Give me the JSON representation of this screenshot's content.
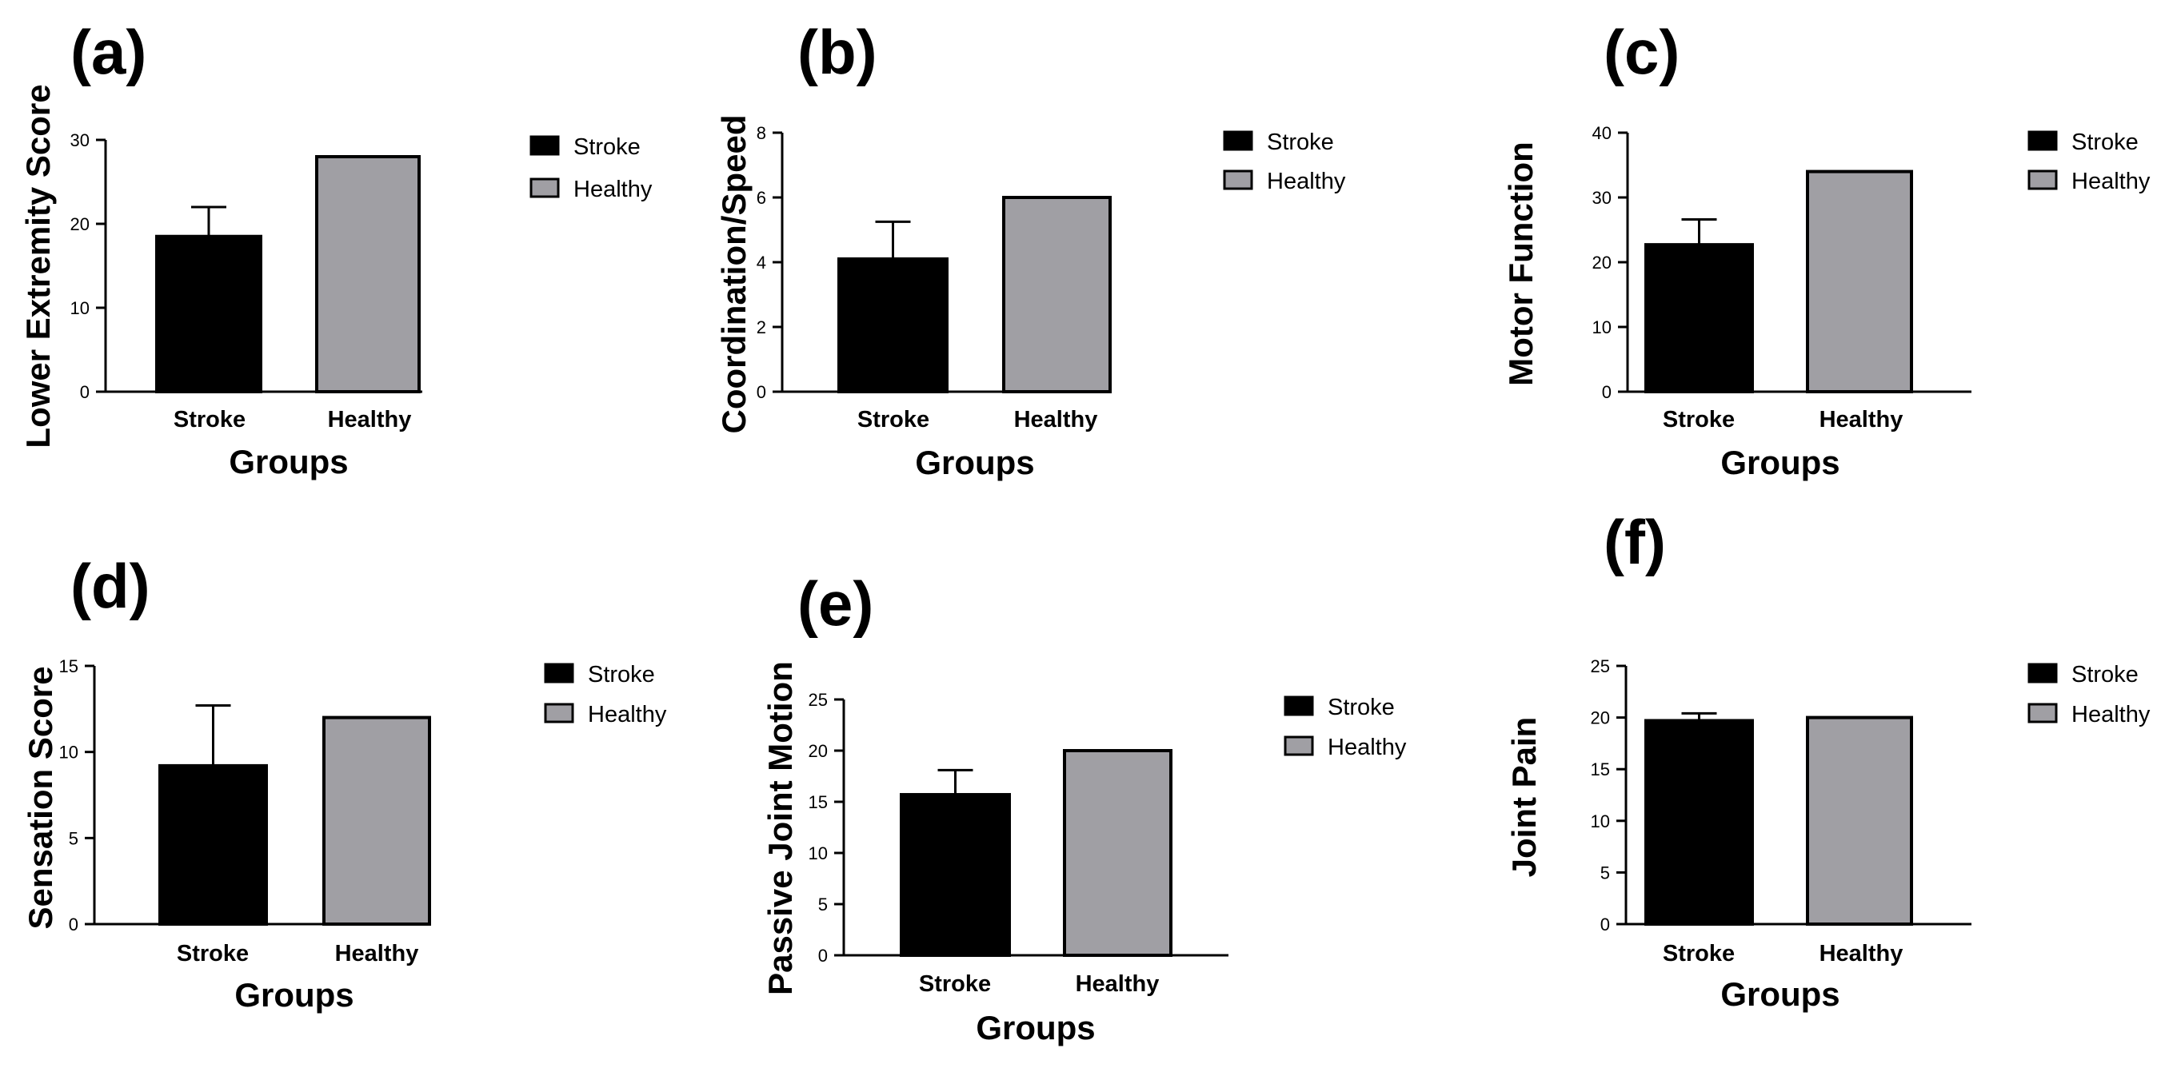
{
  "colors": {
    "stroke": "#000000",
    "healthy": "#a09fa4",
    "axis": "#000000"
  },
  "chart_data": [
    {
      "type": "bar",
      "panel": "(a)",
      "categories": [
        "Stroke",
        "Healthy"
      ],
      "values": [
        18.5,
        28
      ],
      "error": [
        3.5,
        0
      ],
      "ylim": [
        0,
        30
      ],
      "yticks": [
        0,
        10,
        20,
        30
      ],
      "ylabel": "Lower Extremity Score",
      "xlabel": "Groups",
      "legend": [
        "Stroke",
        "Healthy"
      ]
    },
    {
      "type": "bar",
      "panel": "(b)",
      "categories": [
        "Stroke",
        "Healthy"
      ],
      "values": [
        4.1,
        6
      ],
      "error": [
        1.15,
        0
      ],
      "ylim": [
        0,
        8
      ],
      "yticks": [
        0,
        2,
        4,
        6,
        8
      ],
      "ylabel": "Coordination/Speed",
      "xlabel": "Groups",
      "legend": [
        "Stroke",
        "Healthy"
      ]
    },
    {
      "type": "bar",
      "panel": "(c)",
      "categories": [
        "Stroke",
        "Healthy"
      ],
      "values": [
        22.7,
        34
      ],
      "error": [
        3.9,
        0
      ],
      "ylim": [
        0,
        40
      ],
      "yticks": [
        0,
        10,
        20,
        30,
        40
      ],
      "ylabel": "Motor Function",
      "xlabel": "Groups",
      "legend": [
        "Stroke",
        "Healthy"
      ]
    },
    {
      "type": "bar",
      "panel": "(d)",
      "categories": [
        "Stroke",
        "Healthy"
      ],
      "values": [
        9.2,
        12
      ],
      "error": [
        3.5,
        0
      ],
      "ylim": [
        0,
        15
      ],
      "yticks": [
        0,
        5,
        10,
        15
      ],
      "ylabel": "Sensation Score",
      "xlabel": "Groups",
      "legend": [
        "Stroke",
        "Healthy"
      ]
    },
    {
      "type": "bar",
      "panel": "(e)",
      "categories": [
        "Stroke",
        "Healthy"
      ],
      "values": [
        15.7,
        20
      ],
      "error": [
        2.4,
        0
      ],
      "ylim": [
        0,
        25
      ],
      "yticks": [
        0,
        5,
        10,
        15,
        20,
        25
      ],
      "ylabel": "Passive Joint Motion",
      "xlabel": "Groups",
      "legend": [
        "Stroke",
        "Healthy"
      ]
    },
    {
      "type": "bar",
      "panel": "(f)",
      "categories": [
        "Stroke",
        "Healthy"
      ],
      "values": [
        19.7,
        20
      ],
      "error": [
        0.7,
        0
      ],
      "ylim": [
        0,
        25
      ],
      "yticks": [
        0,
        5,
        10,
        15,
        20,
        25
      ],
      "ylabel": "Joint Pain",
      "xlabel": "Groups",
      "legend": [
        "Stroke",
        "Healthy"
      ]
    }
  ]
}
